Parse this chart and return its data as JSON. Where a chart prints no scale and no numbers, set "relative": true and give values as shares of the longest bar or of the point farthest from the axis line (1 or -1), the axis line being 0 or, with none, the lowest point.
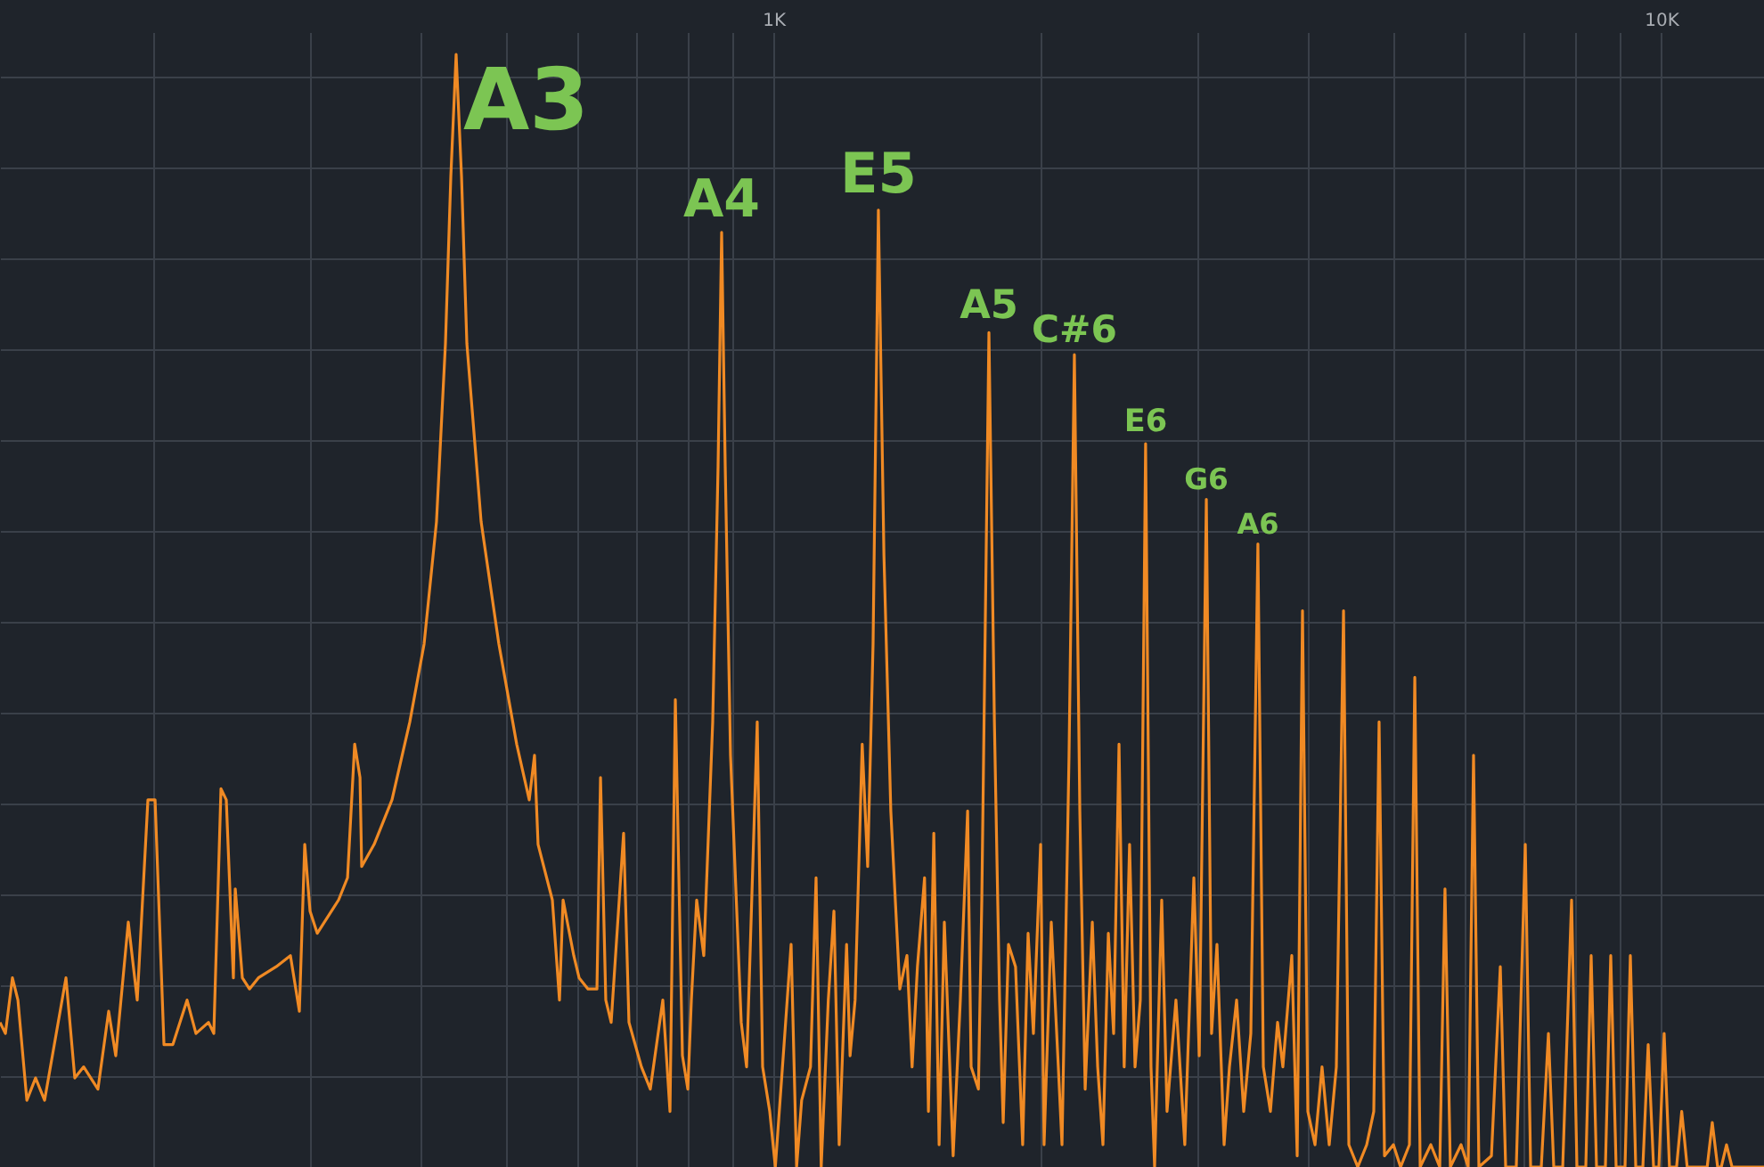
{
  "chart_data": {
    "type": "line",
    "relative": true,
    "log": "x",
    "grid": true,
    "tick_labels": "x",
    "marker": "none",
    "line_style": "solid",
    "xlim": [
      134.5,
      13060
    ],
    "xticks": [
      {
        "value": 200,
        "label": null
      },
      {
        "value": 300,
        "label": null
      },
      {
        "value": 400,
        "label": null
      },
      {
        "value": 500,
        "label": null
      },
      {
        "value": 600,
        "label": null
      },
      {
        "value": 700,
        "label": null
      },
      {
        "value": 800,
        "label": null
      },
      {
        "value": 900,
        "label": null
      },
      {
        "value": 1000,
        "label": "1K"
      },
      {
        "value": 2000,
        "label": null
      },
      {
        "value": 3000,
        "label": null
      },
      {
        "value": 4000,
        "label": null
      },
      {
        "value": 5000,
        "label": null
      },
      {
        "value": 6000,
        "label": null
      },
      {
        "value": 7000,
        "label": null
      },
      {
        "value": 8000,
        "label": null
      },
      {
        "value": 9000,
        "label": null
      },
      {
        "value": 10000,
        "label": "10K"
      }
    ],
    "annotations": [
      {
        "text": "A3",
        "x": 439.1,
        "y": 1
      },
      {
        "text": "A4",
        "x": 874.3,
        "y": 0.84
      },
      {
        "text": "E5",
        "x": 1313,
        "y": 0.86
      },
      {
        "text": "A5",
        "x": 1749,
        "y": 0.75
      },
      {
        "text": "C#6",
        "x": 2183,
        "y": 0.73
      },
      {
        "text": "E6",
        "x": 2626,
        "y": 0.65
      },
      {
        "text": "G6",
        "x": 3074,
        "y": 0.6
      },
      {
        "text": "A6",
        "x": 3514,
        "y": 0.56
      }
    ],
    "series": [
      {
        "color": "#f08a24",
        "x": [
          134.5,
          136.4,
          138.9,
          140.9,
          144.2,
          147.5,
          151.0,
          159.6,
          163.3,
          167.1,
          173.4,
          178.3,
          181.6,
          187.6,
          192.0,
          197.4,
          201.1,
          205.8,
          210.6,
          218.5,
          223.6,
          231.0,
          234.2,
          238.6,
          241.9,
          246.4,
          247.6,
          252.2,
          256.9,
          262.9,
          275.3,
          285.7,
          292.4,
          296.5,
          300.6,
          306.3,
          323.7,
          331.3,
          337.5,
          342.2,
          343.7,
          355.0,
          371.8,
          389.4,
          404.1,
          417.3,
          427.1,
          433.1,
          439.1,
          445.3,
          451.5,
          468.5,
          490.6,
          513.8,
          530.8,
          538.1,
          543.1,
          563.6,
          574.1,
          579.5,
          595.8,
          604.1,
          618.2,
          632.7,
          638.6,
          647.4,
          656.5,
          678.0,
          687.5,
          710.1,
          726.7,
          750.6,
          764.7,
          775.4,
          789.8,
          800.9,
          808.3,
          819.5,
          834.8,
          854.3,
          866.3,
          874.3,
          882.5,
          894.7,
          911.4,
          919.9,
          932.8,
          958.9,
          972.4,
          990.5,
          1005,
          1028,
          1047,
          1062,
          1076,
          1101,
          1117,
          1132,
          1153,
          1170,
          1186,
          1209,
          1220,
          1236,
          1259,
          1277,
          1295,
          1313,
          1332,
          1356,
          1388,
          1414,
          1433,
          1453,
          1480,
          1495,
          1516,
          1537,
          1558,
          1594,
          1624,
          1655,
          1670,
          1702,
          1717,
          1749,
          1774,
          1798,
          1815,
          1840,
          1874,
          1909,
          1936,
          1963,
          2000,
          2018,
          2056,
          2094,
          2114,
          2153,
          2183,
          2214,
          2245,
          2287,
          2319,
          2351,
          2384,
          2417,
          2451,
          2484,
          2519,
          2555,
          2590,
          2626,
          2663,
          2688,
          2738,
          2776,
          2841,
          2907,
          2976,
          3018,
          3074,
          3116,
          3160,
          3219,
          3264,
          3325,
          3387,
          3450,
          3514,
          3564,
          3630,
          3698,
          3749,
          3837,
          3891,
          3945,
          4000,
          4075,
          4150,
          4228,
          4307,
          4388,
          4449,
          4553,
          4660,
          4746,
          4812,
          4880,
          4994,
          5088,
          5206,
          5279,
          5353,
          5503,
          5632,
          5709,
          5789,
          5952,
          6063,
          6148,
          6234,
          6440,
          6590,
          6682,
          6869,
          7031,
          7129,
          7329,
          7466,
          7570,
          7748,
          7928,
          8039,
          8226,
          8341,
          8458,
          8655,
          8776,
          8899,
          9107,
          9234,
          9364,
          9538,
          9671,
          9807,
          9943,
          10080,
          10220,
          10410,
          10550,
          10700,
          11270,
          11420,
          11580,
          11690,
          11850,
          12020,
          13060
        ],
        "values": [
          0.13,
          0.12,
          0.17,
          0.15,
          0.06,
          0.08,
          0.06,
          0.17,
          0.08,
          0.09,
          0.07,
          0.14,
          0.1,
          0.22,
          0.15,
          0.33,
          0.33,
          0.11,
          0.11,
          0.15,
          0.12,
          0.13,
          0.12,
          0.34,
          0.33,
          0.17,
          0.25,
          0.17,
          0.16,
          0.17,
          0.18,
          0.19,
          0.14,
          0.29,
          0.23,
          0.21,
          0.24,
          0.26,
          0.38,
          0.35,
          0.27,
          0.29,
          0.33,
          0.4,
          0.47,
          0.58,
          0.74,
          0.89,
          1,
          0.89,
          0.74,
          0.58,
          0.47,
          0.38,
          0.33,
          0.37,
          0.29,
          0.24,
          0.15,
          0.24,
          0.19,
          0.17,
          0.16,
          0.16,
          0.35,
          0.15,
          0.13,
          0.3,
          0.13,
          0.09,
          0.07,
          0.15,
          0.05,
          0.42,
          0.1,
          0.07,
          0.15,
          0.24,
          0.19,
          0.4,
          0.63,
          0.84,
          0.63,
          0.37,
          0.21,
          0.13,
          0.09,
          0.4,
          0.09,
          0.05,
          0,
          0.11,
          0.2,
          0.0,
          0.06,
          0.09,
          0.26,
          0,
          0.15,
          0.23,
          0.02,
          0.2,
          0.1,
          0.15,
          0.38,
          0.27,
          0.47,
          0.86,
          0.55,
          0.32,
          0.16,
          0.19,
          0.09,
          0.18,
          0.26,
          0.05,
          0.3,
          0.02,
          0.22,
          0.01,
          0.15,
          0.32,
          0.09,
          0.07,
          0.24,
          0.75,
          0.4,
          0.15,
          0.04,
          0.2,
          0.18,
          0.02,
          0.21,
          0.12,
          0.29,
          0.02,
          0.22,
          0.09,
          0.02,
          0.37,
          0.73,
          0.32,
          0.07,
          0.22,
          0.09,
          0.02,
          0.21,
          0.12,
          0.38,
          0.09,
          0.29,
          0.09,
          0.15,
          0.65,
          0.09,
          0,
          0.24,
          0.05,
          0.15,
          0.02,
          0.26,
          0.1,
          0.6,
          0.12,
          0.2,
          0.02,
          0.09,
          0.15,
          0.05,
          0.12,
          0.56,
          0.09,
          0.05,
          0.13,
          0.09,
          0.19,
          0.01,
          0.5,
          0.05,
          0.02,
          0.09,
          0.02,
          0.09,
          0.5,
          0.02,
          0,
          0.02,
          0.05,
          0.4,
          0.01,
          0.02,
          0,
          0.02,
          0.44,
          0,
          0.02,
          0,
          0.25,
          0,
          0.02,
          0,
          0.37,
          0,
          0.01,
          0.18,
          0,
          0,
          0.29,
          0,
          0,
          0.12,
          0,
          0,
          0.24,
          0,
          0,
          0.19,
          0,
          0,
          0.19,
          0,
          0,
          0.19,
          0,
          0,
          0.11,
          0,
          0,
          0.12,
          0,
          0,
          0.05,
          0,
          0,
          0.04,
          0,
          0,
          0.02,
          0,
          0
        ]
      }
    ]
  }
}
